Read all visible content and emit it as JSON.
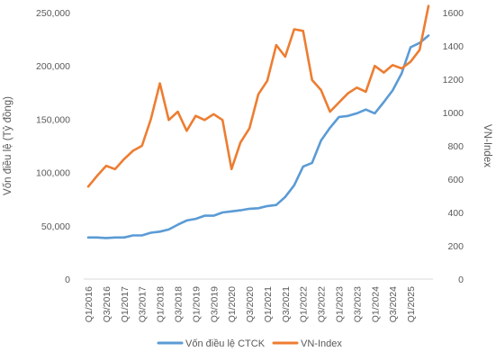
{
  "chart_data": {
    "type": "line",
    "x": [
      "Q1/2016",
      "Q2/2016",
      "Q3/2016",
      "Q4/2016",
      "Q1/2017",
      "Q2/2017",
      "Q3/2017",
      "Q4/2017",
      "Q1/2018",
      "Q2/2018",
      "Q3/2018",
      "Q4/2018",
      "Q1/2019",
      "Q2/2019",
      "Q3/2019",
      "Q4/2019",
      "Q1/2020",
      "Q2/2020",
      "Q3/2020",
      "Q4/2020",
      "Q1/2021",
      "Q2/2021",
      "Q3/2021",
      "Q4/2021",
      "Q1/2022",
      "Q2/2022",
      "Q3/2022",
      "Q4/2022",
      "Q1/2023",
      "Q2/2023",
      "Q3/2023",
      "Q4/2023",
      "Q1/2024",
      "Q2/2024",
      "Q3/2024",
      "Q4/2024",
      "Q1/2025",
      "Q2/2025",
      "Q3/2025"
    ],
    "x_tick_labels": [
      "Q1/2016",
      "Q3/2016",
      "Q1/2017",
      "Q3/2017",
      "Q1/2018",
      "Q3/2018",
      "Q1/2019",
      "Q3/2019",
      "Q1/2020",
      "Q3/2020",
      "Q1/2021",
      "Q3/2021",
      "Q1/2022",
      "Q3/2022",
      "Q1/2023",
      "Q3/2023",
      "Q1/2024",
      "Q3/2024",
      "Q1/2025"
    ],
    "series": [
      {
        "name": "Vốn điều lệ CTCK",
        "axis": "left",
        "color": "#5b9bd5",
        "values": [
          39000,
          39000,
          38500,
          39000,
          39000,
          41000,
          41000,
          43500,
          44500,
          46500,
          51000,
          55000,
          56500,
          59500,
          59500,
          62500,
          63500,
          64500,
          66000,
          66500,
          68500,
          69500,
          77000,
          88000,
          105500,
          109000,
          130000,
          142000,
          152000,
          153000,
          155500,
          159000,
          155500,
          166000,
          177000,
          193000,
          217500,
          221500,
          228500
        ]
      },
      {
        "name": "VN-Index",
        "axis": "right",
        "color": "#ed7d31",
        "values": [
          555,
          620,
          680,
          660,
          720,
          770,
          800,
          960,
          1175,
          955,
          1005,
          890,
          980,
          955,
          990,
          955,
          660,
          820,
          905,
          1110,
          1190,
          1405,
          1335,
          1500,
          1490,
          1195,
          1135,
          1005,
          1060,
          1115,
          1150,
          1125,
          1280,
          1240,
          1285,
          1265,
          1305,
          1375,
          1640
        ]
      }
    ],
    "y_left": {
      "label": "Vốn điều lệ (Tỷ đồng)",
      "ticks": [
        "0",
        "50,000",
        "100,000",
        "150,000",
        "200,000",
        "250,000"
      ],
      "ylim": [
        0,
        250000
      ]
    },
    "y_right": {
      "label": "VN-Index",
      "ticks": [
        "0",
        "200",
        "400",
        "600",
        "800",
        "1000",
        "1200",
        "1400",
        "1600"
      ],
      "ylim": [
        0,
        1600
      ]
    },
    "grid": false,
    "legend_position": "bottom"
  }
}
